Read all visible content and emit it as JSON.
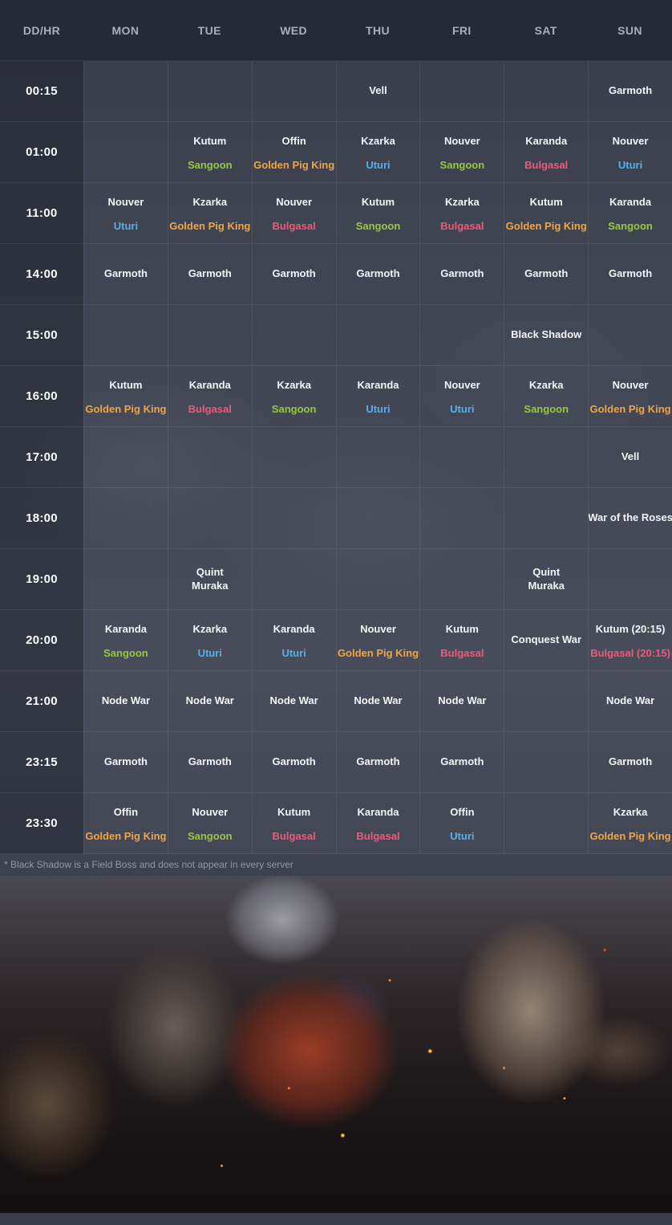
{
  "table": {
    "corner_label": "DD/HR",
    "days": [
      "MON",
      "TUE",
      "WED",
      "THU",
      "FRI",
      "SAT",
      "SUN"
    ],
    "rows": [
      {
        "time": "00:15",
        "cells": [
          null,
          null,
          null,
          {
            "lines": [
              {
                "text": "Vell",
                "color": "white"
              }
            ]
          },
          null,
          null,
          {
            "lines": [
              {
                "text": "Garmoth",
                "color": "white"
              }
            ]
          }
        ]
      },
      {
        "time": "01:00",
        "cells": [
          null,
          {
            "lines": [
              {
                "text": "Kutum",
                "color": "white"
              },
              {
                "text": "Sangoon",
                "color": "green"
              }
            ],
            "spread": true
          },
          {
            "lines": [
              {
                "text": "Offin",
                "color": "white"
              },
              {
                "text": "Golden Pig King",
                "color": "orange"
              }
            ],
            "spread": true
          },
          {
            "lines": [
              {
                "text": "Kzarka",
                "color": "white"
              },
              {
                "text": "Uturi",
                "color": "blue"
              }
            ],
            "spread": true
          },
          {
            "lines": [
              {
                "text": "Nouver",
                "color": "white"
              },
              {
                "text": "Sangoon",
                "color": "green"
              }
            ],
            "spread": true
          },
          {
            "lines": [
              {
                "text": "Karanda",
                "color": "white"
              },
              {
                "text": "Bulgasal",
                "color": "pink"
              }
            ],
            "spread": true
          },
          {
            "lines": [
              {
                "text": "Nouver",
                "color": "white"
              },
              {
                "text": "Uturi",
                "color": "blue"
              }
            ],
            "spread": true
          }
        ]
      },
      {
        "time": "11:00",
        "cells": [
          {
            "lines": [
              {
                "text": "Nouver",
                "color": "white"
              },
              {
                "text": "Uturi",
                "color": "blue"
              }
            ],
            "spread": true
          },
          {
            "lines": [
              {
                "text": "Kzarka",
                "color": "white"
              },
              {
                "text": "Golden Pig King",
                "color": "orange"
              }
            ],
            "spread": true
          },
          {
            "lines": [
              {
                "text": "Nouver",
                "color": "white"
              },
              {
                "text": "Bulgasal",
                "color": "pink"
              }
            ],
            "spread": true
          },
          {
            "lines": [
              {
                "text": "Kutum",
                "color": "white"
              },
              {
                "text": "Sangoon",
                "color": "green"
              }
            ],
            "spread": true
          },
          {
            "lines": [
              {
                "text": "Kzarka",
                "color": "white"
              },
              {
                "text": "Bulgasal",
                "color": "pink"
              }
            ],
            "spread": true
          },
          {
            "lines": [
              {
                "text": "Kutum",
                "color": "white"
              },
              {
                "text": "Golden Pig King",
                "color": "orange"
              }
            ],
            "spread": true
          },
          {
            "lines": [
              {
                "text": "Karanda",
                "color": "white"
              },
              {
                "text": "Sangoon",
                "color": "green"
              }
            ],
            "spread": true
          }
        ]
      },
      {
        "time": "14:00",
        "cells": [
          {
            "lines": [
              {
                "text": "Garmoth",
                "color": "white"
              }
            ]
          },
          {
            "lines": [
              {
                "text": "Garmoth",
                "color": "white"
              }
            ]
          },
          {
            "lines": [
              {
                "text": "Garmoth",
                "color": "white"
              }
            ]
          },
          {
            "lines": [
              {
                "text": "Garmoth",
                "color": "white"
              }
            ]
          },
          {
            "lines": [
              {
                "text": "Garmoth",
                "color": "white"
              }
            ]
          },
          {
            "lines": [
              {
                "text": "Garmoth",
                "color": "white"
              }
            ]
          },
          {
            "lines": [
              {
                "text": "Garmoth",
                "color": "white"
              }
            ]
          }
        ]
      },
      {
        "time": "15:00",
        "cells": [
          null,
          null,
          null,
          null,
          null,
          {
            "lines": [
              {
                "text": "Black Shadow",
                "color": "white"
              }
            ]
          },
          null
        ]
      },
      {
        "time": "16:00",
        "cells": [
          {
            "lines": [
              {
                "text": "Kutum",
                "color": "white"
              },
              {
                "text": "Golden Pig King",
                "color": "orange"
              }
            ],
            "spread": true
          },
          {
            "lines": [
              {
                "text": "Karanda",
                "color": "white"
              },
              {
                "text": "Bulgasal",
                "color": "pink"
              }
            ],
            "spread": true
          },
          {
            "lines": [
              {
                "text": "Kzarka",
                "color": "white"
              },
              {
                "text": "Sangoon",
                "color": "green"
              }
            ],
            "spread": true
          },
          {
            "lines": [
              {
                "text": "Karanda",
                "color": "white"
              },
              {
                "text": "Uturi",
                "color": "blue"
              }
            ],
            "spread": true
          },
          {
            "lines": [
              {
                "text": "Nouver",
                "color": "white"
              },
              {
                "text": "Uturi",
                "color": "blue"
              }
            ],
            "spread": true
          },
          {
            "lines": [
              {
                "text": "Kzarka",
                "color": "white"
              },
              {
                "text": "Sangoon",
                "color": "green"
              }
            ],
            "spread": true
          },
          {
            "lines": [
              {
                "text": "Nouver",
                "color": "white"
              },
              {
                "text": "Golden Pig King",
                "color": "orange"
              }
            ],
            "spread": true
          }
        ]
      },
      {
        "time": "17:00",
        "cells": [
          null,
          null,
          null,
          null,
          null,
          null,
          {
            "lines": [
              {
                "text": "Vell",
                "color": "white"
              }
            ]
          }
        ]
      },
      {
        "time": "18:00",
        "cells": [
          null,
          null,
          null,
          null,
          null,
          null,
          {
            "lines": [
              {
                "text": "War of the Roses",
                "color": "white"
              }
            ]
          }
        ]
      },
      {
        "time": "19:00",
        "cells": [
          null,
          {
            "lines": [
              {
                "text": "Quint",
                "color": "white"
              },
              {
                "text": "Muraka",
                "color": "white"
              }
            ]
          },
          null,
          null,
          null,
          {
            "lines": [
              {
                "text": "Quint",
                "color": "white"
              },
              {
                "text": "Muraka",
                "color": "white"
              }
            ]
          },
          null
        ]
      },
      {
        "time": "20:00",
        "cells": [
          {
            "lines": [
              {
                "text": "Karanda",
                "color": "white"
              },
              {
                "text": "Sangoon",
                "color": "green"
              }
            ],
            "spread": true
          },
          {
            "lines": [
              {
                "text": "Kzarka",
                "color": "white"
              },
              {
                "text": "Uturi",
                "color": "blue"
              }
            ],
            "spread": true
          },
          {
            "lines": [
              {
                "text": "Karanda",
                "color": "white"
              },
              {
                "text": "Uturi",
                "color": "blue"
              }
            ],
            "spread": true
          },
          {
            "lines": [
              {
                "text": "Nouver",
                "color": "white"
              },
              {
                "text": "Golden Pig King",
                "color": "orange"
              }
            ],
            "spread": true
          },
          {
            "lines": [
              {
                "text": "Kutum",
                "color": "white"
              },
              {
                "text": "Bulgasal",
                "color": "pink"
              }
            ],
            "spread": true
          },
          {
            "lines": [
              {
                "text": "Conquest War",
                "color": "white"
              }
            ]
          },
          {
            "lines": [
              {
                "text": "Kutum (20:15)",
                "color": "white"
              },
              {
                "text": "Bulgasal (20:15)",
                "color": "pink"
              }
            ],
            "spread": true
          }
        ]
      },
      {
        "time": "21:00",
        "cells": [
          {
            "lines": [
              {
                "text": "Node War",
                "color": "white"
              }
            ]
          },
          {
            "lines": [
              {
                "text": "Node War",
                "color": "white"
              }
            ]
          },
          {
            "lines": [
              {
                "text": "Node War",
                "color": "white"
              }
            ]
          },
          {
            "lines": [
              {
                "text": "Node War",
                "color": "white"
              }
            ]
          },
          {
            "lines": [
              {
                "text": "Node War",
                "color": "white"
              }
            ]
          },
          null,
          {
            "lines": [
              {
                "text": "Node War",
                "color": "white"
              }
            ]
          }
        ]
      },
      {
        "time": "23:15",
        "cells": [
          {
            "lines": [
              {
                "text": "Garmoth",
                "color": "white"
              }
            ]
          },
          {
            "lines": [
              {
                "text": "Garmoth",
                "color": "white"
              }
            ]
          },
          {
            "lines": [
              {
                "text": "Garmoth",
                "color": "white"
              }
            ]
          },
          {
            "lines": [
              {
                "text": "Garmoth",
                "color": "white"
              }
            ]
          },
          {
            "lines": [
              {
                "text": "Garmoth",
                "color": "white"
              }
            ]
          },
          null,
          {
            "lines": [
              {
                "text": "Garmoth",
                "color": "white"
              }
            ]
          }
        ]
      },
      {
        "time": "23:30",
        "cells": [
          {
            "lines": [
              {
                "text": "Offin",
                "color": "white"
              },
              {
                "text": "Golden Pig King",
                "color": "orange"
              }
            ],
            "spread": true
          },
          {
            "lines": [
              {
                "text": "Nouver",
                "color": "white"
              },
              {
                "text": "Sangoon",
                "color": "green"
              }
            ],
            "spread": true
          },
          {
            "lines": [
              {
                "text": "Kutum",
                "color": "white"
              },
              {
                "text": "Bulgasal",
                "color": "pink"
              }
            ],
            "spread": true
          },
          {
            "lines": [
              {
                "text": "Karanda",
                "color": "white"
              },
              {
                "text": "Bulgasal",
                "color": "pink"
              }
            ],
            "spread": true
          },
          {
            "lines": [
              {
                "text": "Offin",
                "color": "white"
              },
              {
                "text": "Uturi",
                "color": "blue"
              }
            ],
            "spread": true
          },
          null,
          {
            "lines": [
              {
                "text": "Kzarka",
                "color": "white"
              },
              {
                "text": "Golden Pig King",
                "color": "orange"
              }
            ],
            "spread": true
          }
        ]
      }
    ]
  },
  "footnote": "* Black Shadow is a Field Boss and does not appear in every server",
  "colors": {
    "white": "#f4f5f7",
    "green": "#97c93e",
    "orange": "#f2a540",
    "blue": "#55b1ec",
    "pink": "#ee5a78"
  }
}
